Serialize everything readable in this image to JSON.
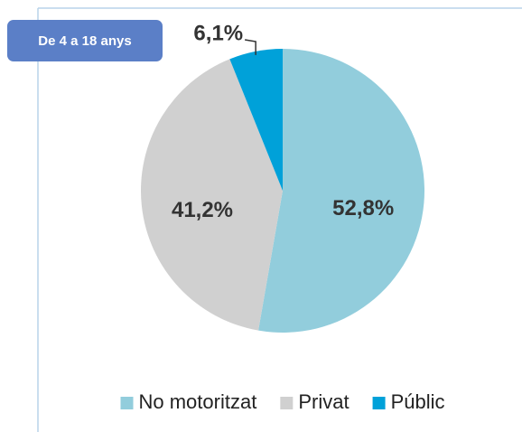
{
  "chart_data": {
    "type": "pie",
    "subtitle": "De 4 a 18 anys",
    "categories": [
      "No motoritzat",
      "Privat",
      "Públic"
    ],
    "values": [
      52.8,
      41.2,
      6.1
    ],
    "value_labels": [
      "52,8%",
      "41,2%",
      "6,1%"
    ],
    "colors": [
      "#92cddc",
      "#d0d0d0",
      "#00a1d9"
    ],
    "legend": "bottom"
  }
}
